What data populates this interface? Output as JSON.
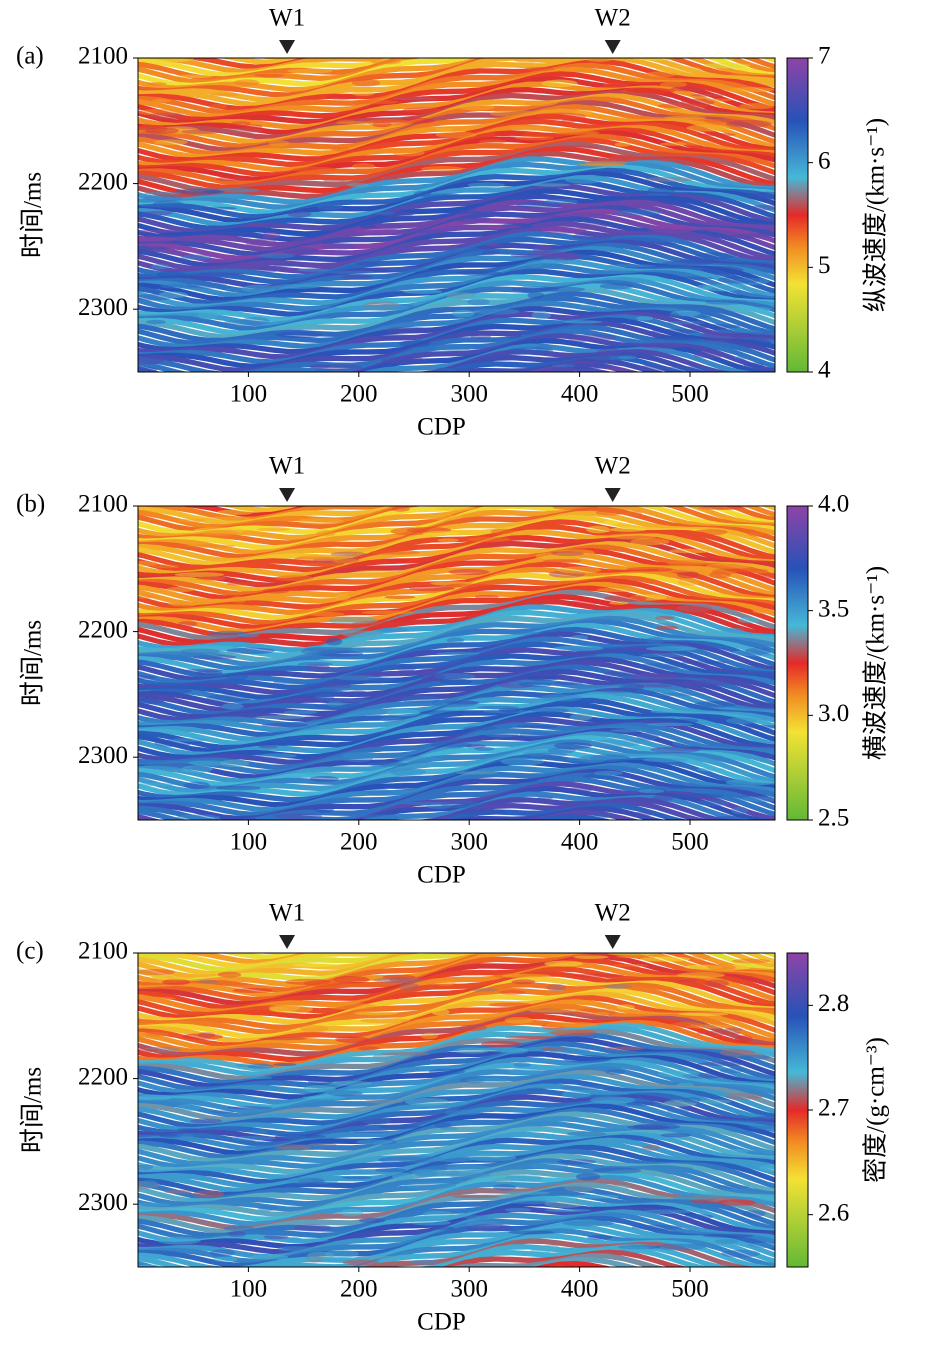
{
  "chart_data": [
    {
      "type": "heatmap",
      "panel_label": "(a)",
      "xlabel": "CDP",
      "ylabel": "时间/ms",
      "xlim": [
        0,
        577
      ],
      "xticks": [
        100,
        200,
        300,
        400,
        500
      ],
      "ylim": [
        2100,
        2350
      ],
      "yticks": [
        2100,
        2200,
        2300
      ],
      "y_inverted": true,
      "wells": [
        {
          "name": "W1",
          "x": 135
        },
        {
          "name": "W2",
          "x": 430
        }
      ],
      "colorbar": {
        "label": "纵波速度/(km·s⁻¹)",
        "lim": [
          4,
          7
        ],
        "ticks": [
          4,
          5,
          6,
          7
        ]
      }
    },
    {
      "type": "heatmap",
      "panel_label": "(b)",
      "xlabel": "CDP",
      "ylabel": "时间/ms",
      "xlim": [
        0,
        577
      ],
      "xticks": [
        100,
        200,
        300,
        400,
        500
      ],
      "ylim": [
        2100,
        2350
      ],
      "yticks": [
        2100,
        2200,
        2300
      ],
      "y_inverted": true,
      "wells": [
        {
          "name": "W1",
          "x": 135
        },
        {
          "name": "W2",
          "x": 430
        }
      ],
      "colorbar": {
        "label": "横波速度/(km·s⁻¹)",
        "lim": [
          2.5,
          4
        ],
        "ticks": [
          {
            "value": 2.5,
            "label": "2.5"
          },
          {
            "value": 3,
            "label": "3.0"
          },
          {
            "value": 3.5,
            "label": "3.5"
          },
          {
            "value": 4,
            "label": "4.0"
          }
        ]
      }
    },
    {
      "type": "heatmap",
      "panel_label": "(c)",
      "xlabel": "CDP",
      "ylabel": "时间/ms",
      "xlim": [
        0,
        577
      ],
      "xticks": [
        100,
        200,
        300,
        400,
        500
      ],
      "ylim": [
        2100,
        2350
      ],
      "yticks": [
        2100,
        2200,
        2300
      ],
      "y_inverted": true,
      "wells": [
        {
          "name": "W1",
          "x": 135
        },
        {
          "name": "W2",
          "x": 430
        }
      ],
      "colorbar": {
        "label": "密度/(g·cm⁻³)",
        "lim": [
          2.55,
          2.85
        ],
        "ticks": [
          2.6,
          2.7,
          2.8
        ]
      }
    }
  ]
}
